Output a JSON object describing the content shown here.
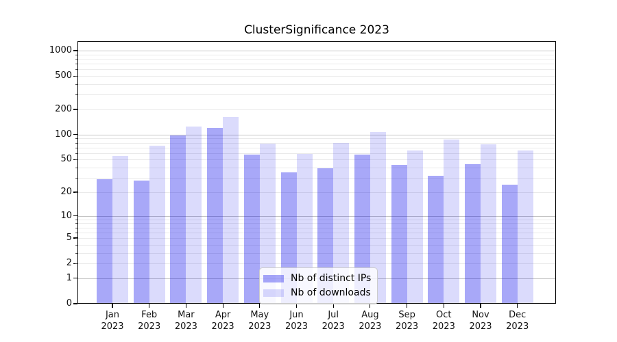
{
  "chart_data": {
    "type": "bar",
    "title": "ClusterSignificance 2023",
    "categories": [
      "Jan",
      "Feb",
      "Mar",
      "Apr",
      "May",
      "Jun",
      "Jul",
      "Aug",
      "Sep",
      "Oct",
      "Nov",
      "Dec"
    ],
    "x_axis": {
      "year_line": "2023"
    },
    "series": [
      {
        "name": "Nb of distinct IPs",
        "color": "rgba(0,0,235,0.34)",
        "values": [
          29,
          28,
          97,
          120,
          58,
          35,
          39,
          58,
          43,
          32,
          44,
          25
        ]
      },
      {
        "name": "Nb of downloads",
        "color": "rgba(0,0,235,0.14)",
        "values": [
          55,
          74,
          126,
          163,
          78,
          59,
          79,
          107,
          64,
          88,
          77,
          64
        ]
      }
    ],
    "y_axis": {
      "scale": "symlog ln(1+v)",
      "max": 1300,
      "ticks": [
        0,
        1,
        2,
        5,
        10,
        20,
        50,
        100,
        200,
        500,
        1000
      ],
      "major_gridlines": [
        1,
        10,
        100,
        1000
      ],
      "minor_gridlines": [
        2,
        3,
        4,
        5,
        6,
        7,
        8,
        9,
        20,
        30,
        40,
        50,
        60,
        70,
        80,
        90,
        200,
        300,
        400,
        500,
        600,
        700,
        800,
        900
      ]
    },
    "grid": "horizontal major and minor, behind translucent bars",
    "legend_position": "lower center"
  },
  "colors": {
    "background": "#ffffff",
    "bar_distinct_ips": "rgba(0,0,235,0.34)",
    "bar_downloads": "rgba(0,0,235,0.14)",
    "major_grid": "#c4c4c4",
    "minor_grid": "#eaeaea",
    "axis": "#000000",
    "text": "#1a1a1a"
  }
}
